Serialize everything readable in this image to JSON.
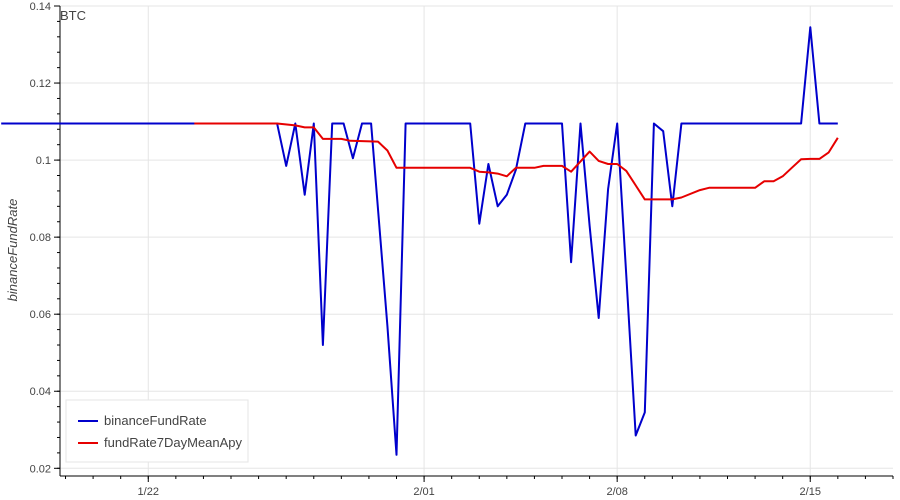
{
  "chart_data": {
    "type": "line",
    "title": "BTC",
    "xlabel": "",
    "ylabel": "binanceFundRate",
    "ylim": [
      0.018,
      0.14
    ],
    "xlim": [
      -13.2,
      17.0
    ],
    "x_unit": "days relative to 2/01 (values are dates)",
    "x_ticks": [
      {
        "x": -10,
        "label": "1/22"
      },
      {
        "x": 0,
        "label": "2/01"
      },
      {
        "x": 7,
        "label": "2/08"
      },
      {
        "x": 14,
        "label": "2/15"
      }
    ],
    "y_ticks": [
      0.02,
      0.04,
      0.06,
      0.08,
      0.1,
      0.12,
      0.14
    ],
    "y_tick_labels": [
      "0.02",
      "0.04",
      "0.06",
      "0.08",
      "0.1",
      "0.12",
      "0.14"
    ],
    "grid": true,
    "legend": "bottom-left",
    "series": [
      {
        "name": "binanceFundRate",
        "color": "#0000cc",
        "points": [
          [
            -15.33,
            0.1095
          ],
          [
            -6.0,
            0.1095
          ],
          [
            -5.33,
            0.1095
          ],
          [
            -5.0,
            0.0985
          ],
          [
            -4.67,
            0.1095
          ],
          [
            -4.33,
            0.091
          ],
          [
            -4.0,
            0.1095
          ],
          [
            -3.67,
            0.052
          ],
          [
            -3.33,
            0.1095
          ],
          [
            -2.92,
            0.1095
          ],
          [
            -2.58,
            0.1005
          ],
          [
            -2.25,
            0.1095
          ],
          [
            -1.92,
            0.1095
          ],
          [
            -1.33,
            0.057
          ],
          [
            -1.0,
            0.0235
          ],
          [
            -0.67,
            0.1095
          ],
          [
            1.67,
            0.1095
          ],
          [
            2.0,
            0.0835
          ],
          [
            2.33,
            0.099
          ],
          [
            2.67,
            0.088
          ],
          [
            3.0,
            0.091
          ],
          [
            3.33,
            0.0975
          ],
          [
            3.67,
            0.1095
          ],
          [
            5.0,
            0.1095
          ],
          [
            5.33,
            0.0735
          ],
          [
            5.67,
            0.1095
          ],
          [
            6.0,
            0.083
          ],
          [
            6.33,
            0.059
          ],
          [
            6.67,
            0.0925
          ],
          [
            7.0,
            0.1095
          ],
          [
            7.33,
            0.07
          ],
          [
            7.67,
            0.0285
          ],
          [
            8.0,
            0.0345
          ],
          [
            8.33,
            0.1095
          ],
          [
            8.67,
            0.1075
          ],
          [
            9.0,
            0.088
          ],
          [
            9.33,
            0.1095
          ],
          [
            13.67,
            0.1095
          ],
          [
            14.0,
            0.1345
          ],
          [
            14.33,
            0.1095
          ],
          [
            15.0,
            0.1095
          ]
        ]
      },
      {
        "name": "fundRate7DayMeanApy",
        "color": "#e60000",
        "points": [
          [
            -8.33,
            0.1095
          ],
          [
            -5.33,
            0.1095
          ],
          [
            -4.67,
            0.109
          ],
          [
            -4.33,
            0.1085
          ],
          [
            -4.0,
            0.1085
          ],
          [
            -3.67,
            0.1055
          ],
          [
            -3.0,
            0.1055
          ],
          [
            -2.67,
            0.105
          ],
          [
            -1.67,
            0.1048
          ],
          [
            -1.33,
            0.1025
          ],
          [
            -1.0,
            0.098
          ],
          [
            1.67,
            0.098
          ],
          [
            2.0,
            0.097
          ],
          [
            2.33,
            0.0968
          ],
          [
            2.67,
            0.0965
          ],
          [
            3.0,
            0.0958
          ],
          [
            3.33,
            0.098
          ],
          [
            4.0,
            0.098
          ],
          [
            4.33,
            0.0985
          ],
          [
            5.0,
            0.0985
          ],
          [
            5.33,
            0.097
          ],
          [
            6.0,
            0.1022
          ],
          [
            6.33,
            0.0998
          ],
          [
            6.67,
            0.099
          ],
          [
            7.0,
            0.099
          ],
          [
            7.33,
            0.0972
          ],
          [
            8.0,
            0.0898
          ],
          [
            9.0,
            0.0898
          ],
          [
            9.33,
            0.0903
          ],
          [
            10.0,
            0.0922
          ],
          [
            10.33,
            0.0928
          ],
          [
            12.0,
            0.0928
          ],
          [
            12.33,
            0.0945
          ],
          [
            12.67,
            0.0945
          ],
          [
            13.0,
            0.0958
          ],
          [
            13.33,
            0.098
          ],
          [
            13.67,
            0.1002
          ],
          [
            14.0,
            0.1003
          ],
          [
            14.33,
            0.1003
          ],
          [
            14.67,
            0.102
          ],
          [
            15.0,
            0.1058
          ]
        ]
      }
    ]
  }
}
